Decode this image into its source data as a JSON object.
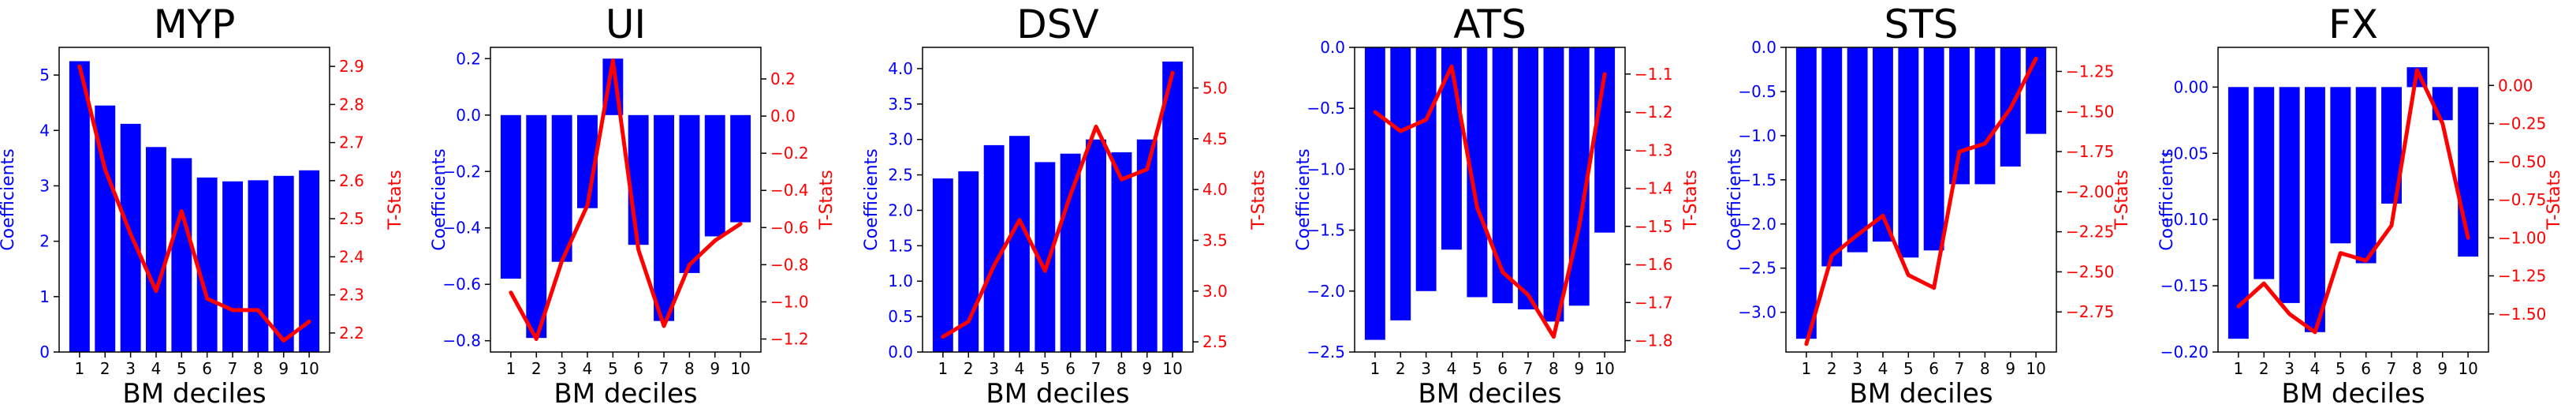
{
  "figure": {
    "background": "#ffffff",
    "bar_color": "#0000ff",
    "line_color": "#ff0000",
    "left_axis_color": "#0000ff",
    "right_axis_color": "#ff0000"
  },
  "chart_data": [
    {
      "type": "bar",
      "title": "MYP",
      "xlabel": "BM deciles",
      "ylabel": "Coefficients",
      "y2label": "T-Stats",
      "categories": [
        "1",
        "2",
        "3",
        "4",
        "5",
        "6",
        "7",
        "8",
        "9",
        "10"
      ],
      "ylim": [
        0,
        5.5
      ],
      "yticks": [
        0,
        1,
        2,
        3,
        4,
        5
      ],
      "y2lim": [
        2.15,
        2.95
      ],
      "y2ticks": [
        2.2,
        2.3,
        2.4,
        2.5,
        2.6,
        2.7,
        2.8,
        2.9
      ],
      "series": [
        {
          "name": "Coefficients",
          "type": "bar",
          "axis": "left",
          "values": [
            5.25,
            4.45,
            4.12,
            3.7,
            3.5,
            3.15,
            3.08,
            3.1,
            3.18,
            3.28
          ]
        },
        {
          "name": "T-Stats",
          "type": "line",
          "axis": "right",
          "values": [
            2.9,
            2.63,
            2.46,
            2.31,
            2.52,
            2.29,
            2.26,
            2.26,
            2.18,
            2.23
          ]
        }
      ],
      "grid": false
    },
    {
      "type": "bar",
      "title": "UI",
      "xlabel": "BM deciles",
      "ylabel": "Coefficients",
      "y2label": "T-Stats",
      "categories": [
        "1",
        "2",
        "3",
        "4",
        "5",
        "6",
        "7",
        "8",
        "9",
        "10"
      ],
      "ylim": [
        -0.84,
        0.24
      ],
      "yticks": [
        -0.8,
        -0.6,
        -0.4,
        -0.2,
        0.0,
        0.2
      ],
      "y2lim": [
        -1.27,
        0.37
      ],
      "y2ticks": [
        -1.2,
        -1.0,
        -0.8,
        -0.6,
        -0.4,
        -0.2,
        0.0,
        0.2
      ],
      "series": [
        {
          "name": "Coefficients",
          "type": "bar",
          "axis": "left",
          "values": [
            -0.58,
            -0.79,
            -0.52,
            -0.33,
            0.2,
            -0.46,
            -0.73,
            -0.56,
            -0.43,
            -0.38
          ]
        },
        {
          "name": "T-Stats",
          "type": "line",
          "axis": "right",
          "values": [
            -0.95,
            -1.2,
            -0.78,
            -0.48,
            0.3,
            -0.72,
            -1.13,
            -0.8,
            -0.67,
            -0.58
          ]
        }
      ],
      "grid": false
    },
    {
      "type": "bar",
      "title": "DSV",
      "xlabel": "BM deciles",
      "ylabel": "Coefficients",
      "y2label": "T-Stats",
      "categories": [
        "1",
        "2",
        "3",
        "4",
        "5",
        "6",
        "7",
        "8",
        "9",
        "10"
      ],
      "ylim": [
        0,
        4.3
      ],
      "yticks": [
        0.0,
        0.5,
        1.0,
        1.5,
        2.0,
        2.5,
        3.0,
        3.5,
        4.0
      ],
      "y2lim": [
        2.4,
        5.4
      ],
      "y2ticks": [
        2.5,
        3.0,
        3.5,
        4.0,
        4.5,
        5.0
      ],
      "series": [
        {
          "name": "Coefficients",
          "type": "bar",
          "axis": "left",
          "values": [
            2.45,
            2.55,
            2.92,
            3.05,
            2.68,
            2.8,
            3.0,
            2.82,
            3.0,
            4.1
          ]
        },
        {
          "name": "T-Stats",
          "type": "line",
          "axis": "right",
          "values": [
            2.55,
            2.7,
            3.25,
            3.7,
            3.2,
            3.95,
            4.62,
            4.1,
            4.2,
            5.15
          ]
        }
      ],
      "grid": false
    },
    {
      "type": "bar",
      "title": "ATS",
      "xlabel": "BM deciles",
      "ylabel": "Coefficients",
      "y2label": "T-Stats",
      "categories": [
        "1",
        "2",
        "3",
        "4",
        "5",
        "6",
        "7",
        "8",
        "9",
        "10"
      ],
      "ylim": [
        -2.5,
        0.0
      ],
      "yticks": [
        -2.5,
        -2.0,
        -1.5,
        -1.0,
        -0.5,
        0.0
      ],
      "y2lim": [
        -1.83,
        -1.03
      ],
      "y2ticks": [
        -1.8,
        -1.7,
        -1.6,
        -1.5,
        -1.4,
        -1.3,
        -1.2,
        -1.1
      ],
      "series": [
        {
          "name": "Coefficients",
          "type": "bar",
          "axis": "left",
          "values": [
            -2.4,
            -2.24,
            -2.0,
            -1.66,
            -2.05,
            -2.1,
            -2.15,
            -2.25,
            -2.12,
            -1.52
          ]
        },
        {
          "name": "T-Stats",
          "type": "line",
          "axis": "right",
          "values": [
            -1.2,
            -1.25,
            -1.22,
            -1.08,
            -1.45,
            -1.62,
            -1.68,
            -1.79,
            -1.5,
            -1.1
          ]
        }
      ],
      "grid": false
    },
    {
      "type": "bar",
      "title": "STS",
      "xlabel": "BM deciles",
      "ylabel": "Coefficients",
      "y2label": "T-Stats",
      "categories": [
        "1",
        "2",
        "3",
        "4",
        "5",
        "6",
        "7",
        "8",
        "9",
        "10"
      ],
      "ylim": [
        -3.45,
        0.0
      ],
      "yticks": [
        -3.0,
        -2.5,
        -2.0,
        -1.5,
        -1.0,
        -0.5,
        0.0
      ],
      "y2lim": [
        -3.0,
        -1.1
      ],
      "y2ticks": [
        -2.75,
        -2.5,
        -2.25,
        -2.0,
        -1.75,
        -1.5,
        -1.25
      ],
      "series": [
        {
          "name": "Coefficients",
          "type": "bar",
          "axis": "left",
          "values": [
            -3.3,
            -2.48,
            -2.32,
            -2.2,
            -2.38,
            -2.3,
            -1.55,
            -1.55,
            -1.35,
            -0.98
          ]
        },
        {
          "name": "T-Stats",
          "type": "line",
          "axis": "right",
          "values": [
            -2.95,
            -2.4,
            -2.27,
            -2.15,
            -2.52,
            -2.6,
            -1.75,
            -1.7,
            -1.48,
            -1.17
          ]
        }
      ],
      "grid": false
    },
    {
      "type": "bar",
      "title": "FX",
      "xlabel": "BM deciles",
      "ylabel": "Coefficients",
      "y2label": "T-Stats",
      "categories": [
        "1",
        "2",
        "3",
        "4",
        "5",
        "6",
        "7",
        "8",
        "9",
        "10"
      ],
      "ylim": [
        -0.2,
        0.03
      ],
      "yticks": [
        -0.2,
        -0.15,
        -0.1,
        -0.05,
        0.0
      ],
      "y2lim": [
        -1.75,
        0.25
      ],
      "y2ticks": [
        -1.5,
        -1.25,
        -1.0,
        -0.75,
        -0.5,
        -0.25,
        0.0
      ],
      "series": [
        {
          "name": "Coefficients",
          "type": "bar",
          "axis": "left",
          "values": [
            -0.19,
            -0.145,
            -0.163,
            -0.185,
            -0.118,
            -0.133,
            -0.088,
            0.015,
            -0.025,
            -0.128
          ]
        },
        {
          "name": "T-Stats",
          "type": "line",
          "axis": "right",
          "values": [
            -1.45,
            -1.3,
            -1.5,
            -1.62,
            -1.1,
            -1.15,
            -0.92,
            0.1,
            -0.25,
            -1.0
          ]
        }
      ],
      "grid": false
    }
  ]
}
